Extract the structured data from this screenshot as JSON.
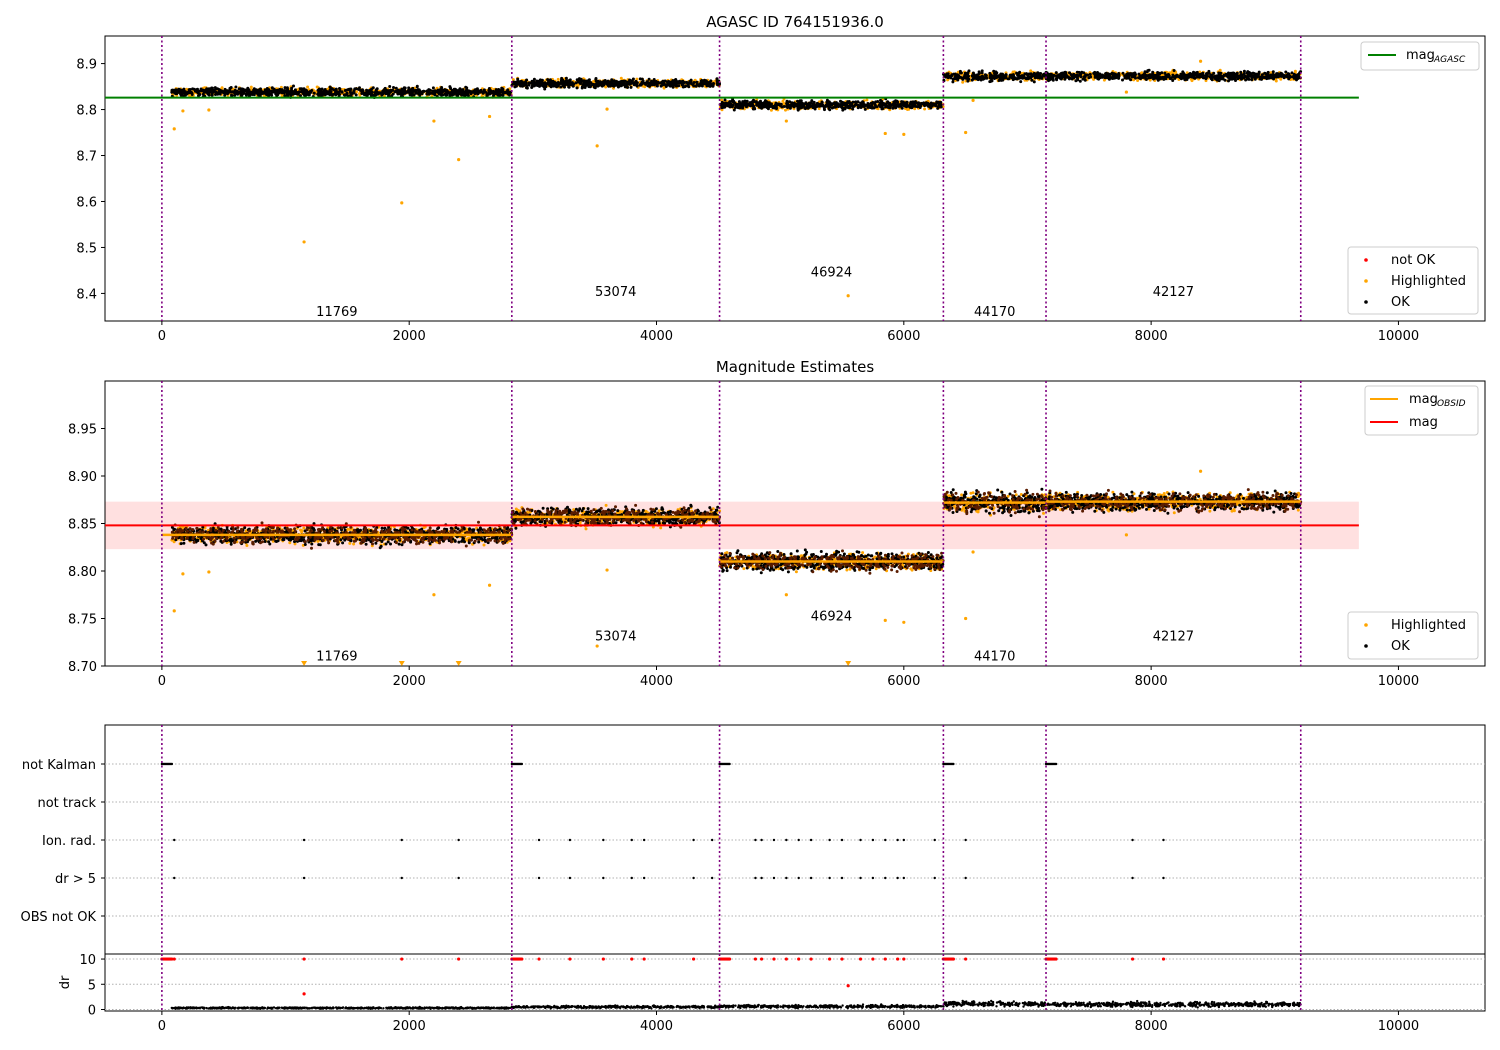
{
  "chart_data": [
    {
      "type": "scatter",
      "title": "AGASC ID 764151936.0",
      "xlim": [
        -460,
        10700
      ],
      "ylim": [
        8.34,
        8.96
      ],
      "x_ticks": [
        0,
        2000,
        4000,
        6000,
        8000,
        10000
      ],
      "y_ticks": [
        8.4,
        8.5,
        8.6,
        8.7,
        8.8,
        8.9
      ],
      "x_tick_labels": [
        "0",
        "2000",
        "4000",
        "6000",
        "8000",
        "10000"
      ],
      "y_tick_labels": [
        "8.4",
        "8.5",
        "8.6",
        "8.7",
        "8.8",
        "8.9"
      ],
      "boundaries": [
        0,
        2830,
        4510,
        6320,
        7150,
        9210
      ],
      "obsids": [
        {
          "label": "11769",
          "x": 1415,
          "y": 8.362
        },
        {
          "label": "53074",
          "x": 3670,
          "y": 8.405
        },
        {
          "label": "46924",
          "x": 5415,
          "y": 8.448
        },
        {
          "label": "44170",
          "x": 6735,
          "y": 8.362
        },
        {
          "label": "42127",
          "x": 8180,
          "y": 8.405
        }
      ],
      "segments": [
        {
          "x_start": 80,
          "x_end": 2830,
          "mean": 8.838,
          "spread": 0.009
        },
        {
          "x_start": 2830,
          "x_end": 4510,
          "mean": 8.857,
          "spread": 0.009
        },
        {
          "x_start": 4510,
          "x_end": 6320,
          "mean": 8.81,
          "spread": 0.009
        },
        {
          "x_start": 6320,
          "x_end": 7150,
          "mean": 8.872,
          "spread": 0.01
        },
        {
          "x_start": 7150,
          "x_end": 9210,
          "mean": 8.873,
          "spread": 0.009
        }
      ],
      "mag_agasc": {
        "value": 8.826,
        "x_start": -460,
        "x_end": 9680
      },
      "highlighted_points": [
        [
          100,
          8.758
        ],
        [
          170,
          8.797
        ],
        [
          380,
          8.799
        ],
        [
          1150,
          8.512
        ],
        [
          1940,
          8.597
        ],
        [
          2200,
          8.775
        ],
        [
          2400,
          8.691
        ],
        [
          2650,
          8.785
        ],
        [
          3520,
          8.721
        ],
        [
          3600,
          8.801
        ],
        [
          5050,
          8.775
        ],
        [
          5550,
          8.395
        ],
        [
          5850,
          8.748
        ],
        [
          6000,
          8.746
        ],
        [
          6500,
          8.75
        ],
        [
          6560,
          8.82
        ],
        [
          7800,
          8.838
        ],
        [
          8400,
          8.905
        ]
      ],
      "legend_upper": [
        {
          "label": "mag",
          "sub": "AGASC",
          "color": "#008000"
        }
      ],
      "legend_lower": [
        {
          "label": "not OK",
          "color": "#ff0000"
        },
        {
          "label": "Highlighted",
          "color": "#ffa500"
        },
        {
          "label": "OK",
          "color": "#000000"
        }
      ]
    },
    {
      "type": "scatter",
      "title": "Magnitude Estimates",
      "xlim": [
        -460,
        10700
      ],
      "ylim": [
        8.7,
        9.0
      ],
      "x_ticks": [
        0,
        2000,
        4000,
        6000,
        8000,
        10000
      ],
      "y_ticks": [
        8.7,
        8.75,
        8.8,
        8.85,
        8.9,
        8.95
      ],
      "x_tick_labels": [
        "0",
        "2000",
        "4000",
        "6000",
        "8000",
        "10000"
      ],
      "y_tick_labels": [
        "8.70",
        "8.75",
        "8.80",
        "8.85",
        "8.90",
        "8.95"
      ],
      "mag_mean": {
        "value": 8.848,
        "band": [
          8.823,
          8.873
        ],
        "x_start": -460,
        "x_end": 9680
      },
      "obsid_means": [
        {
          "x_start": 0,
          "x_end": 2830,
          "value": 8.838
        },
        {
          "x_start": 2830,
          "x_end": 4510,
          "value": 8.857
        },
        {
          "x_start": 4510,
          "x_end": 6320,
          "value": 8.81
        },
        {
          "x_start": 6320,
          "x_end": 7150,
          "value": 8.872
        },
        {
          "x_start": 7150,
          "x_end": 9210,
          "value": 8.873
        }
      ],
      "obsids": [
        {
          "label": "11769",
          "x": 1415,
          "y": 8.711
        },
        {
          "label": "53074",
          "x": 3670,
          "y": 8.732
        },
        {
          "label": "46924",
          "x": 5415,
          "y": 8.753
        },
        {
          "label": "44170",
          "x": 6735,
          "y": 8.711
        },
        {
          "label": "42127",
          "x": 8180,
          "y": 8.732
        }
      ],
      "highlighted_points": [
        [
          100,
          8.758
        ],
        [
          170,
          8.797
        ],
        [
          380,
          8.799
        ],
        [
          2200,
          8.775
        ],
        [
          2650,
          8.785
        ],
        [
          3520,
          8.721
        ],
        [
          3600,
          8.801
        ],
        [
          5050,
          8.775
        ],
        [
          5850,
          8.748
        ],
        [
          6000,
          8.746
        ],
        [
          6500,
          8.75
        ],
        [
          6560,
          8.82
        ],
        [
          7800,
          8.838
        ],
        [
          8400,
          8.905
        ]
      ],
      "clipped_markers": [
        1150,
        1940,
        2400,
        5550
      ],
      "legend_upper": [
        {
          "label": "mag",
          "sub": "OBSID",
          "color": "#ffa500"
        },
        {
          "label": "mag",
          "sub": "",
          "color": "#ff0000"
        }
      ],
      "legend_lower": [
        {
          "label": "Highlighted",
          "color": "#ffa500"
        },
        {
          "label": "OK",
          "color": "#000000"
        }
      ]
    },
    {
      "type": "scatter",
      "title": "",
      "xlim": [
        -460,
        10700
      ],
      "x_ticks": [
        0,
        2000,
        4000,
        6000,
        8000,
        10000
      ],
      "x_tick_labels": [
        "0",
        "2000",
        "4000",
        "6000",
        "8000",
        "10000"
      ],
      "flag_rows": [
        "not Kalman",
        "not track",
        "Ion. rad.",
        "dr > 5",
        "OBS not OK"
      ],
      "not_kalman_x": [
        0,
        2830,
        4510,
        6320,
        7150
      ],
      "flag_x": [
        100,
        1150,
        1940,
        2400,
        3050,
        3300,
        3570,
        3800,
        3900,
        4300,
        4450,
        4800,
        4850,
        4950,
        5050,
        5150,
        5250,
        5400,
        5500,
        5650,
        5750,
        5850,
        5950,
        6000,
        6250,
        6500,
        7850,
        8100
      ],
      "dr_ylim": [
        -0.3,
        11
      ],
      "dr_ticks": [
        0,
        5,
        10
      ],
      "dr_tick_labels": [
        "0",
        "5",
        "10"
      ],
      "dr_ylabel": "dr",
      "dr_red_x": [
        100,
        1150,
        1940,
        2400,
        3050,
        3300,
        3570,
        3800,
        3900,
        4300,
        4800,
        4850,
        4950,
        5050,
        5150,
        5250,
        5400,
        5500,
        5650,
        5750,
        5850,
        5950,
        6000,
        6500,
        7850,
        8100
      ],
      "dr_red_extra": [
        [
          1150,
          3.1
        ],
        [
          5550,
          4.7
        ]
      ],
      "dr_segments": [
        {
          "x_start": 80,
          "x_end": 2830,
          "level": 0.3
        },
        {
          "x_start": 2830,
          "x_end": 4510,
          "level": 0.5
        },
        {
          "x_start": 4510,
          "x_end": 6320,
          "level": 0.6
        },
        {
          "x_start": 6320,
          "x_end": 7150,
          "level": 1.1
        },
        {
          "x_start": 7150,
          "x_end": 9210,
          "level": 1.0
        }
      ]
    }
  ]
}
